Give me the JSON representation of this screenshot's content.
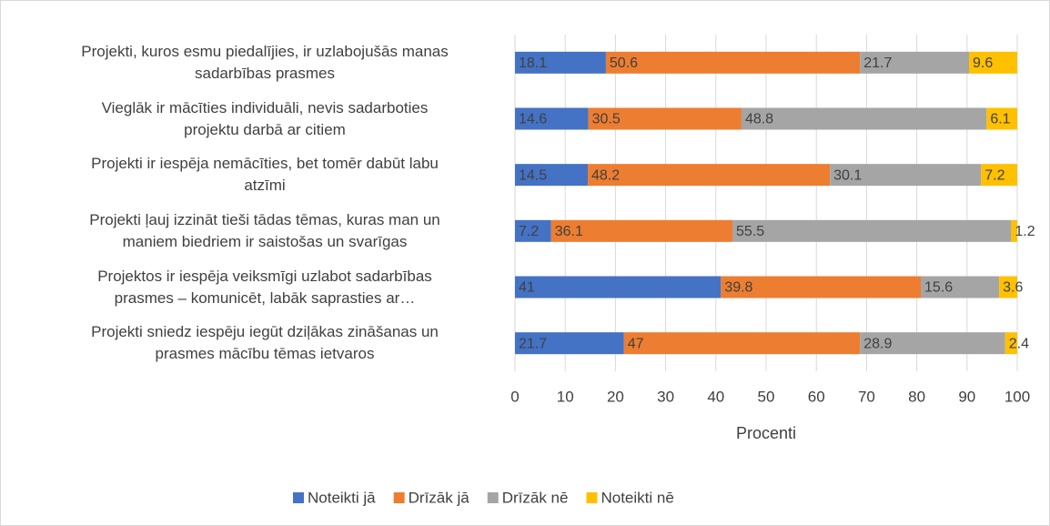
{
  "chart_data": {
    "type": "stacked_barh",
    "categories": [
      "Projekti, kuros esmu piedalījies, ir uzlabojušās manas\nsadarbības prasmes",
      "Vieglāk ir mācīties individuāli, nevis sadarboties\nprojektu darbā ar citiem",
      "Projekti ir iespēja nemācīties, bet tomēr dabūt labu\natzīmi",
      "Projekti ļauj izzināt tieši tādas tēmas, kuras man un\nmaniem biedriem ir saistošas un svarīgas",
      "Projektos ir iespēja veiksmīgi uzlabot sadarbības\nprasmes – komunicēt, labāk saprasties ar…",
      "Projekti sniedz iespēju iegūt dziļākas zināšanas un\nprasmes mācību tēmas ietvaros"
    ],
    "series": [
      {
        "name": "Noteikti jā",
        "color": "#4472c4",
        "values": [
          18.1,
          14.6,
          14.5,
          7.2,
          41,
          21.7
        ]
      },
      {
        "name": "Drīzāk jā",
        "color": "#ed7d31",
        "values": [
          50.6,
          30.5,
          48.2,
          36.1,
          39.8,
          47
        ]
      },
      {
        "name": "Drīzāk nē",
        "color": "#a5a5a5",
        "values": [
          21.7,
          48.8,
          30.1,
          55.5,
          15.6,
          28.9
        ]
      },
      {
        "name": "Noteikti nē",
        "color": "#ffc000",
        "values": [
          9.6,
          6.1,
          7.2,
          1.2,
          3.6,
          2.4
        ]
      }
    ],
    "xlabel": "Procenti",
    "xlim": [
      0,
      100
    ],
    "xticks": [
      0,
      10,
      20,
      30,
      40,
      50,
      60,
      70,
      80,
      90,
      100
    ],
    "grid": true,
    "legend": "bottom"
  }
}
